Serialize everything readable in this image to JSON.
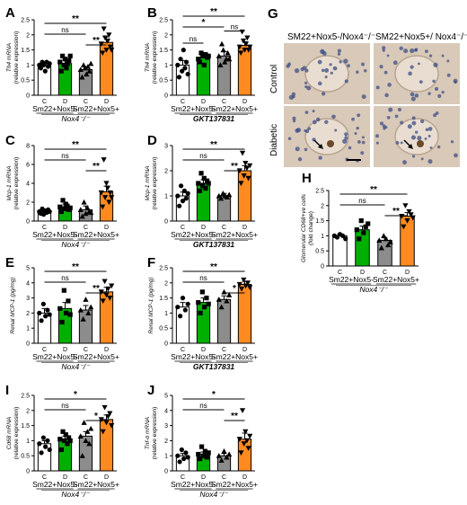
{
  "panel_letters": [
    "A",
    "B",
    "C",
    "D",
    "E",
    "F",
    "G",
    "H",
    "I",
    "J"
  ],
  "microscopy": {
    "letter": "G",
    "col_headers": [
      "SM22+Nox5-/Nox4⁻/⁻",
      "SM22+Nox5+/ Nox4⁻/⁻"
    ],
    "row_labels": [
      "Control",
      "Diabetic"
    ],
    "arrow_icon": "arrow-icon",
    "colors": {
      "tissue": "#d9c9b8",
      "nuclei": "#3e4d86",
      "stain": "#6b4a2a"
    }
  },
  "colors": {
    "bar_c": "#ffffff",
    "green": "#00b000",
    "gray": "#8c8c8c",
    "orange": "#ff8a1f"
  },
  "chart_data": [
    {
      "id": "A",
      "type": "bar",
      "ylabel": "Th4 mRNA\n(relative expression)",
      "ylim": [
        0,
        2.5
      ],
      "yticks": [
        0,
        0.5,
        1,
        1.5,
        2,
        2.5
      ],
      "categories": [
        "C",
        "D",
        "C",
        "D"
      ],
      "values": [
        1.0,
        1.05,
        0.85,
        1.75
      ],
      "errors": [
        0.1,
        0.12,
        0.1,
        0.18
      ],
      "group_labels": [
        "Sm22+Nox5-",
        "Sm22+Nox5+"
      ],
      "genotype": "Nox4⁻/⁻",
      "sig": [
        {
          "from": 1,
          "to": 3,
          "label": "ns"
        },
        {
          "from": 1,
          "to": 4,
          "label": "**"
        },
        {
          "from": 3,
          "to": 4,
          "label": "**"
        }
      ],
      "points": [
        [
          1.0,
          0.9,
          1.1,
          1.0,
          0.8,
          1.1,
          0.95,
          1.05
        ],
        [
          1.1,
          0.8,
          1.3,
          1.0,
          1.2,
          0.9,
          1.05,
          1.15,
          1.3
        ],
        [
          0.85,
          0.6,
          1.0,
          0.9,
          0.7,
          0.95,
          0.8,
          1.05
        ],
        [
          1.7,
          1.4,
          2.2,
          1.9,
          1.5,
          1.8,
          2.0,
          1.6,
          1.5
        ]
      ],
      "markers": [
        "circle",
        "square",
        "triangle",
        "invtriangle"
      ]
    },
    {
      "id": "B",
      "type": "bar",
      "ylabel": "Th4 mRNA\n(relative expression)",
      "ylim": [
        0,
        2.5
      ],
      "yticks": [
        0,
        0.5,
        1,
        1.5,
        2,
        2.5
      ],
      "categories": [
        "C",
        "D",
        "C",
        "D"
      ],
      "values": [
        1.0,
        1.25,
        1.3,
        1.65
      ],
      "errors": [
        0.15,
        0.1,
        0.15,
        0.12
      ],
      "group_labels": [
        "Sm22+Nox5-",
        "Sm22+Nox5+"
      ],
      "genotype": "GKT137831",
      "sig": [
        {
          "from": 1,
          "to": 2,
          "label": "ns"
        },
        {
          "from": 1,
          "to": 3,
          "label": "*"
        },
        {
          "from": 1,
          "to": 4,
          "label": "**"
        },
        {
          "from": 3,
          "to": 4,
          "label": "ns"
        }
      ],
      "points": [
        [
          1.0,
          0.6,
          1.2,
          0.8,
          1.5,
          0.9,
          1.1,
          0.7
        ],
        [
          1.2,
          1.1,
          1.4,
          1.3,
          1.0,
          1.35,
          1.25,
          1.3
        ],
        [
          1.3,
          1.0,
          1.7,
          1.5,
          1.1,
          1.2,
          1.4,
          1.2
        ],
        [
          1.6,
          1.4,
          2.1,
          1.8,
          1.5,
          1.7,
          1.9,
          1.5,
          1.6
        ]
      ],
      "markers": [
        "circle",
        "square",
        "triangle",
        "invtriangle"
      ]
    },
    {
      "id": "C",
      "type": "bar",
      "ylabel": "Mcp-1 mRNA\n(relative expression)",
      "ylim": [
        0,
        8
      ],
      "yticks": [
        0,
        2,
        4,
        6,
        8
      ],
      "categories": [
        "C",
        "D",
        "C",
        "D"
      ],
      "values": [
        1.0,
        1.5,
        1.2,
        3.1
      ],
      "errors": [
        0.15,
        0.3,
        0.4,
        0.6
      ],
      "group_labels": [
        "Sm22+Nox5-",
        "Sm22+Nox5+"
      ],
      "genotype": "Nox4⁻/⁻",
      "sig": [
        {
          "from": 1,
          "to": 3,
          "label": "ns"
        },
        {
          "from": 1,
          "to": 4,
          "label": "**"
        },
        {
          "from": 3,
          "to": 4,
          "label": "**"
        }
      ],
      "points": [
        [
          1.0,
          0.8,
          1.3,
          0.7,
          1.1,
          0.9,
          1.2,
          1.0
        ],
        [
          1.5,
          1.0,
          2.2,
          1.3,
          1.8,
          1.6,
          1.2,
          1.4
        ],
        [
          1.2,
          0.5,
          2.0,
          0.8,
          1.4,
          1.0,
          0.9
        ],
        [
          3.0,
          1.5,
          6.5,
          2.5,
          4.0,
          3.5,
          2.0,
          3.0,
          2.5
        ]
      ],
      "markers": [
        "circle",
        "square",
        "triangle",
        "invtriangle"
      ]
    },
    {
      "id": "D",
      "type": "bar",
      "ylabel": "Mcp-1 mRNA\n(relative expression)",
      "ylim": [
        0,
        3
      ],
      "yticks": [
        0,
        1,
        2,
        3
      ],
      "categories": [
        "C",
        "D",
        "C",
        "D"
      ],
      "values": [
        1.0,
        1.5,
        1.0,
        2.0
      ],
      "errors": [
        0.15,
        0.15,
        0.1,
        0.2
      ],
      "group_labels": [
        "Sm22+Nox5-",
        "Sm22+Nox5+"
      ],
      "genotype": "GKT137831",
      "sig": [
        {
          "from": 1,
          "to": 3,
          "label": "ns"
        },
        {
          "from": 1,
          "to": 4,
          "label": "**"
        },
        {
          "from": 3,
          "to": 4,
          "label": "**"
        }
      ],
      "points": [
        [
          1.0,
          0.6,
          1.4,
          0.8,
          1.2,
          0.9,
          1.1
        ],
        [
          1.5,
          1.2,
          1.9,
          1.4,
          1.7,
          1.3,
          1.6,
          1.5
        ],
        [
          1.0,
          0.9,
          1.1,
          1.0,
          0.95,
          1.05
        ],
        [
          2.0,
          1.5,
          2.7,
          1.8,
          2.3,
          2.1,
          1.7,
          2.2
        ]
      ],
      "markers": [
        "circle",
        "square",
        "triangle",
        "invtriangle"
      ]
    },
    {
      "id": "E",
      "type": "bar",
      "ylabel": "Renal MCP-1 (pg/mg)",
      "ylim": [
        0,
        5
      ],
      "yticks": [
        0,
        1,
        2,
        3,
        4,
        5
      ],
      "categories": [
        "C",
        "D",
        "C",
        "D"
      ],
      "values": [
        2.0,
        2.3,
        2.2,
        3.4
      ],
      "errors": [
        0.3,
        0.4,
        0.3,
        0.3
      ],
      "group_labels": [
        "Sm22+Nox5-",
        "Sm22+Nox5+"
      ],
      "genotype": "Nox4⁻/⁻",
      "sig": [
        {
          "from": 1,
          "to": 3,
          "label": "ns"
        },
        {
          "from": 1,
          "to": 4,
          "label": "**"
        },
        {
          "from": 3,
          "to": 4,
          "label": "**"
        }
      ],
      "points": [
        [
          2.0,
          1.5,
          2.6,
          1.8,
          2.2,
          1.9
        ],
        [
          2.3,
          1.4,
          3.5,
          2.0,
          2.8,
          1.9
        ],
        [
          2.2,
          1.6,
          2.9,
          2.0,
          2.4
        ],
        [
          3.4,
          2.8,
          4.1,
          3.2,
          3.6,
          3.0,
          3.8
        ]
      ],
      "markers": [
        "circle",
        "square",
        "triangle",
        "invtriangle"
      ]
    },
    {
      "id": "F",
      "type": "bar",
      "ylabel": "Renal MCP-1 (pg/mg)",
      "ylim": [
        0,
        2.5
      ],
      "yticks": [
        0,
        0.5,
        1,
        1.5,
        2,
        2.5
      ],
      "categories": [
        "C",
        "D",
        "C",
        "D"
      ],
      "values": [
        1.2,
        1.35,
        1.45,
        1.95
      ],
      "errors": [
        0.15,
        0.15,
        0.12,
        0.1
      ],
      "group_labels": [
        "Sm22+Nox5-",
        "Sm22+Nox5+"
      ],
      "genotype": "GKT137831",
      "sig": [
        {
          "from": 1,
          "to": 3,
          "label": "ns"
        },
        {
          "from": 1,
          "to": 4,
          "label": "**"
        },
        {
          "from": 3,
          "to": 4,
          "label": "*"
        }
      ],
      "points": [
        [
          1.2,
          0.9,
          1.5,
          1.1,
          1.3
        ],
        [
          1.35,
          1.0,
          1.7,
          1.2,
          1.5,
          1.3
        ],
        [
          1.45,
          1.2,
          1.7,
          1.4,
          1.6
        ],
        [
          1.95,
          1.8,
          2.1,
          1.9,
          2.0,
          1.85
        ]
      ],
      "markers": [
        "circle",
        "square",
        "triangle",
        "invtriangle"
      ]
    },
    {
      "id": "H",
      "type": "bar",
      "ylabel": "Glomerular CD68+ve cells\n(fold change)",
      "ylim": [
        0,
        2.5
      ],
      "yticks": [
        0,
        0.5,
        1,
        1.5,
        2,
        2.5
      ],
      "categories": [
        "C",
        "D",
        "C",
        "D"
      ],
      "values": [
        1.0,
        1.2,
        0.85,
        1.65
      ],
      "errors": [
        0.05,
        0.12,
        0.08,
        0.12
      ],
      "group_labels": [
        "Sm22+Nox5-",
        "Sm22+Nox5+"
      ],
      "genotype": "Nox4⁻/⁻",
      "sig": [
        {
          "from": 1,
          "to": 3,
          "label": "ns"
        },
        {
          "from": 1,
          "to": 4,
          "label": "**"
        },
        {
          "from": 3,
          "to": 4,
          "label": "**"
        }
      ],
      "points": [
        [
          1.0,
          0.95,
          1.05,
          1.0,
          0.9
        ],
        [
          1.2,
          0.9,
          1.5,
          1.1,
          1.3,
          1.4
        ],
        [
          0.85,
          0.6,
          1.0,
          0.9,
          0.7,
          0.8
        ],
        [
          1.65,
          1.3,
          2.0,
          1.5,
          1.8,
          1.7,
          1.6
        ]
      ],
      "markers": [
        "circle",
        "square",
        "triangle",
        "invtriangle"
      ]
    },
    {
      "id": "I",
      "type": "bar",
      "ylabel": "Cd68 mRNA\n(relative expression)",
      "ylim": [
        0,
        2.5
      ],
      "yticks": [
        0,
        0.5,
        1,
        1.5,
        2,
        2.5
      ],
      "categories": [
        "C",
        "D",
        "C",
        "D"
      ],
      "values": [
        0.9,
        1.05,
        1.15,
        1.7
      ],
      "errors": [
        0.1,
        0.1,
        0.15,
        0.15
      ],
      "group_labels": [
        "Sm22+Nox5-",
        "Sm22+Nox5+"
      ],
      "genotype": "Nox4⁻/⁻",
      "sig": [
        {
          "from": 1,
          "to": 3,
          "label": "ns"
        },
        {
          "from": 1,
          "to": 4,
          "label": "*"
        },
        {
          "from": 3,
          "to": 4,
          "label": "*"
        }
      ],
      "points": [
        [
          0.9,
          0.6,
          1.1,
          0.8,
          1.0,
          0.7
        ],
        [
          1.05,
          0.7,
          1.3,
          1.0,
          1.2,
          0.9,
          1.1,
          1.0
        ],
        [
          1.15,
          0.5,
          1.6,
          1.0,
          1.3,
          0.9,
          1.4
        ],
        [
          1.7,
          1.3,
          2.1,
          1.6,
          1.8,
          1.9,
          1.5
        ]
      ],
      "markers": [
        "circle",
        "square",
        "triangle",
        "invtriangle"
      ]
    },
    {
      "id": "J",
      "type": "bar",
      "ylabel": "Tnf-α mRNA\n(relative expression)",
      "ylim": [
        0,
        5
      ],
      "yticks": [
        0,
        1,
        2,
        3,
        4,
        5
      ],
      "categories": [
        "C",
        "D",
        "C",
        "D"
      ],
      "values": [
        1.0,
        1.1,
        1.0,
        2.1
      ],
      "errors": [
        0.15,
        0.15,
        0.15,
        0.4
      ],
      "group_labels": [
        "Sm22+Nox5-",
        "Sm22+Nox5+"
      ],
      "genotype": "Nox4⁻/⁻",
      "sig": [
        {
          "from": 1,
          "to": 3,
          "label": "ns"
        },
        {
          "from": 1,
          "to": 4,
          "label": "*"
        },
        {
          "from": 3,
          "to": 4,
          "label": "**"
        }
      ],
      "points": [
        [
          1.0,
          0.6,
          1.4,
          0.8,
          1.2,
          0.9
        ],
        [
          1.1,
          0.8,
          1.6,
          1.0,
          1.3,
          0.9,
          1.2
        ],
        [
          1.0,
          0.7,
          1.3,
          0.9,
          1.1
        ],
        [
          2.1,
          1.2,
          4.0,
          1.8,
          2.6,
          2.0,
          1.5,
          2.3
        ]
      ],
      "markers": [
        "circle",
        "square",
        "triangle",
        "invtriangle"
      ]
    }
  ]
}
